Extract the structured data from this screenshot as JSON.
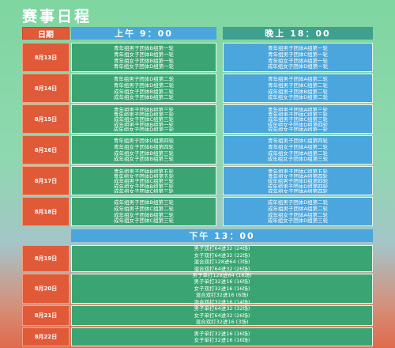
{
  "title": "赛事日程",
  "header": {
    "date_label": "日期",
    "am_label": "上午 9：00",
    "pm_label": "晚上 18：00"
  },
  "afternoon_label": "下午 13：00",
  "days": [
    {
      "date": "8月13日",
      "am": [
        "青年组男子团体B组第一轮",
        "青年组女子团体B组第一轮",
        "青年组女子团体B组第一轮",
        "青年组女子团体D组第一轮"
      ],
      "pm": [
        "青年组男子团体A组第一轮",
        "青年组男子团体C组第一轮",
        "青年组女子团体A组第一轮",
        "成年组女子团体D组第一轮"
      ]
    },
    {
      "date": "8月14日",
      "am": [
        "青年组男子团体D组第二轮",
        "青年组男子团体D组第二轮",
        "成年组女子团体B组第二轮",
        "成年组女子团体B组第二轮"
      ],
      "pm": [
        "青年组男子团体A组第二轮",
        "青年组男子团体C组第二轮",
        "成年组男子团体B组第二轮",
        "成年组女子团体D组第二轮"
      ]
    },
    {
      "date": "8月15日",
      "am": [
        "青年组男子团体B组第三轮",
        "青年组男子团体D组第三轮",
        "成年组女子团体C组第三轮",
        "成年组男子团体B组第一轮",
        "成年组女子团体D组第三轮"
      ],
      "pm": [
        "青年组男子团体A组第三轮",
        "青年组男子团体C组第三轮",
        "成年组男子团体C组第三轮",
        "成年组女子团体D组第四轮",
        "成年组女子团体A组第一轮"
      ]
    },
    {
      "date": "8月16日",
      "am": [
        "青年组男子团体D组第四轮",
        "青年组女子团体B组第四轮",
        "成年组女子团体B组第三轮",
        "成年组女子团体B组第三轮"
      ],
      "pm": [
        "青年组男子团体C组第四轮",
        "青年组女子团体A组第二轮",
        "成年组女子团体A组第二轮",
        "成年组女子团体D组第三轮"
      ]
    },
    {
      "date": "8月17日",
      "am": [
        "青年组男子团体B组第五轮",
        "青年组女子团体D组第五轮",
        "成年组男子团体C组第三轮",
        "成年组女子团体B组第三轮",
        "成年组女子团体C组第三轮"
      ],
      "pm": [
        "青年组男子团体C组第五轮",
        "青年组女子团体A组第四轮",
        "成年组男子团体D组第四轮",
        "成年组男子团体D组第四轮",
        "成年组女子团体A组第四轮"
      ]
    },
    {
      "date": "8月18日",
      "am": [
        "成年组男子团体B组第三轮",
        "成年组男子团体C组第二轮",
        "成年组女子团体B组第二轮",
        "成年组女子团体C组第三轮"
      ],
      "pm": [
        "成年组男子团体D组第二轮",
        "成年组男子团体A组第二轮",
        "成年组女子团体A组第二轮",
        "成年组女子团体D组第三轮"
      ]
    }
  ],
  "afternoon": [
    {
      "date": "8月19日",
      "events": [
        "男子双打64进32 (24场)",
        "女子双打64进32 (22场)",
        "混合双打128进64 (3场)",
        "混合双打64进32 (26场)"
      ]
    },
    {
      "date": "8月20日",
      "events": [
        "男子单打128进64 (16场)",
        "男子单打32进16 (16场)",
        "女子双打32进16 (16场)",
        "混合双打32进16 (6场)",
        "混合双打32进16 (14场)"
      ]
    },
    {
      "date": "8月21日",
      "events": [
        "男子单打64进32 (32场)",
        "女子单打64进32 (26场)",
        "混合双打32进16 (3场)"
      ]
    },
    {
      "date": "8月22日",
      "events": [
        "男子单打32进16 (16场)",
        "女子单打32进16 (16场)"
      ]
    }
  ]
}
